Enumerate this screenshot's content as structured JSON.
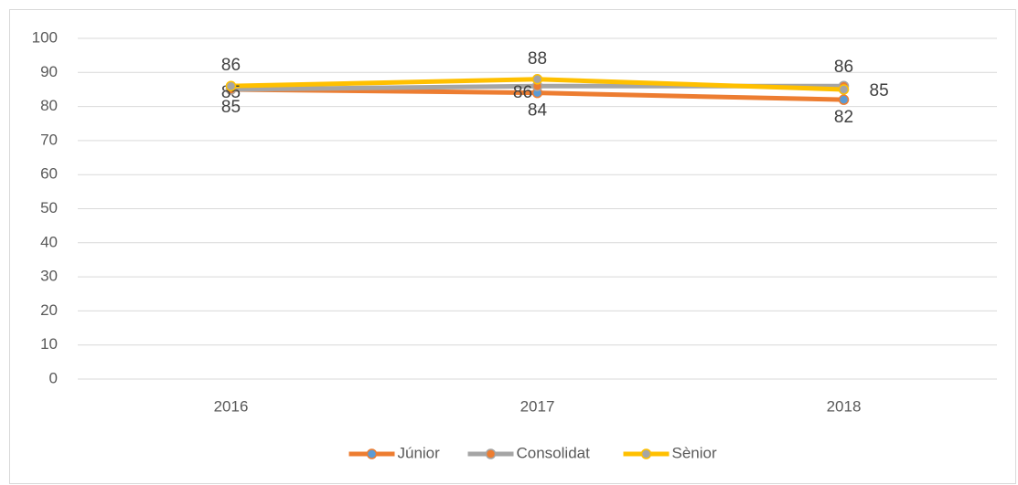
{
  "chart_data": {
    "type": "line",
    "categories": [
      "2016",
      "2017",
      "2018"
    ],
    "series": [
      {
        "name": "Júnior",
        "color": "#ed7d31",
        "marker_color": "#5b9bd5",
        "values": [
          85,
          84,
          82
        ]
      },
      {
        "name": "Consolidat",
        "color": "#a5a5a5",
        "marker_color": "#ed7d31",
        "values": [
          85,
          86,
          86
        ]
      },
      {
        "name": "Sènior",
        "color": "#ffc000",
        "marker_color": "#a5a5a5",
        "values": [
          86,
          88,
          85
        ]
      }
    ],
    "ylim": [
      0,
      100
    ],
    "yticks": [
      0,
      10,
      20,
      30,
      40,
      50,
      60,
      70,
      80,
      90,
      100
    ],
    "grid": true,
    "legend": "bottom"
  }
}
